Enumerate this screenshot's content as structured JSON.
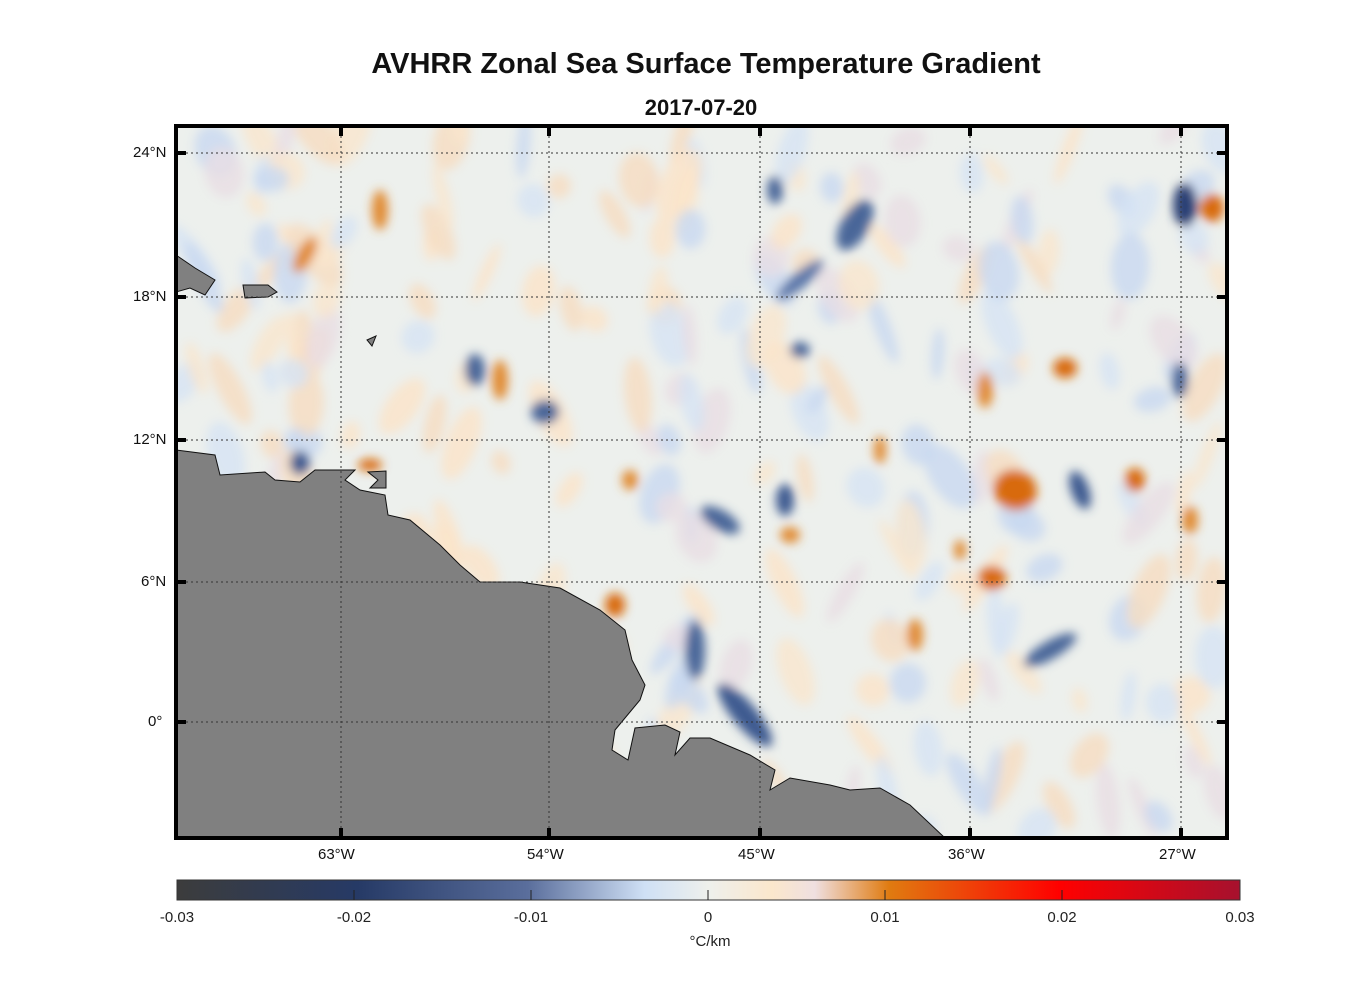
{
  "title": "AVHRR Zonal Sea Surface Temperature Gradient",
  "date": "2017-07-20",
  "lat_labels": [
    "24°N",
    "18°N",
    "12°N",
    "6°N",
    "0°"
  ],
  "lon_labels": [
    "63°W",
    "54°W",
    "45°W",
    "36°W",
    "27°W"
  ],
  "colorbar": {
    "ticks": [
      "-0.03",
      "-0.02",
      "-0.01",
      "0",
      "0.01",
      "0.02",
      "0.03"
    ],
    "units": "°C/km",
    "range": [
      -0.03,
      0.03
    ],
    "colors": [
      "#3c3c3c",
      "#263a66",
      "#5a6e9c",
      "#cfe0f5",
      "#eef0ec",
      "#fbe7cc",
      "#e07b10",
      "#ff0000",
      "#a6112e"
    ]
  },
  "colors": {
    "ocean": "#edf0ed",
    "land": "#808080",
    "negative": "#3d5a90",
    "positive": "#e07b10"
  }
}
